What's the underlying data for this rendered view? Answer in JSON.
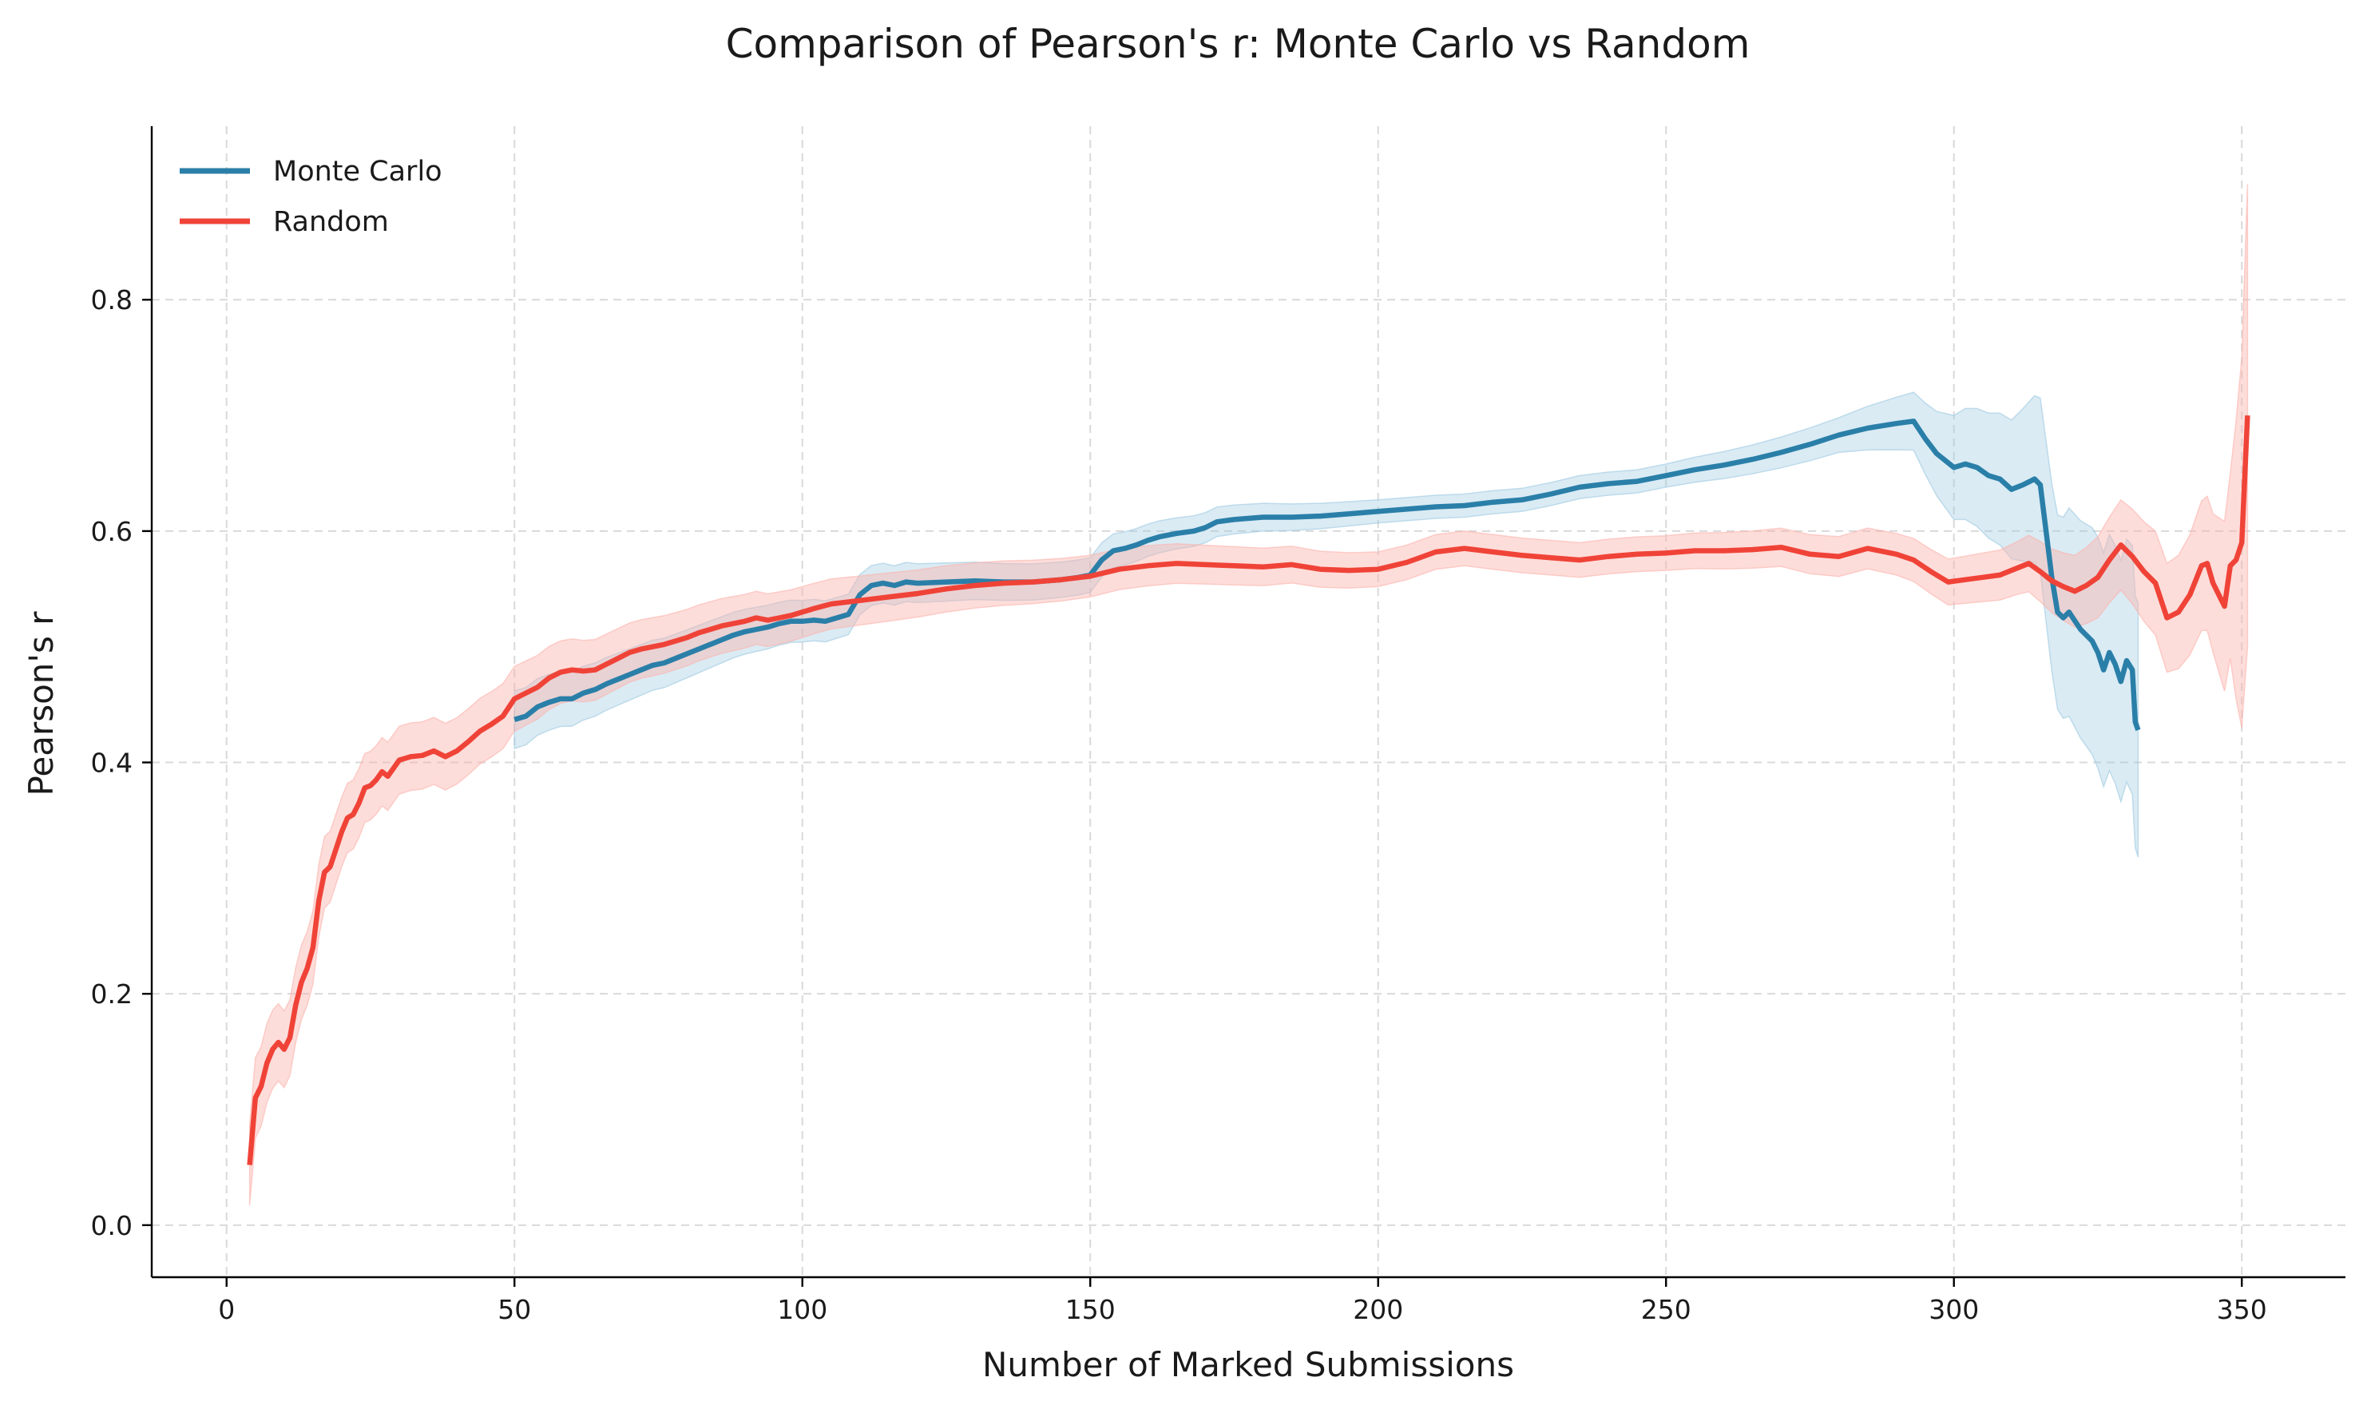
{
  "chart_data": {
    "type": "line",
    "title": "Comparison of Pearson's r: Monte Carlo vs Random",
    "xlabel": "Number of Marked Submissions",
    "ylabel": "Pearson's r",
    "xlim": [
      -13,
      368
    ],
    "ylim": [
      -0.045,
      0.95
    ],
    "xticks": [
      0,
      50,
      100,
      150,
      200,
      250,
      300,
      350
    ],
    "yticks": [
      0.0,
      0.2,
      0.4,
      0.6,
      0.8
    ],
    "ytick_labels": [
      "0.0",
      "0.2",
      "0.4",
      "0.6",
      "0.8"
    ],
    "grid": true,
    "legend_position": "top-left",
    "series": [
      {
        "name": "Monte Carlo",
        "color": "#2a7fa8",
        "band_color": "#9ecae1",
        "points": [
          [
            50,
            0.437
          ],
          [
            52,
            0.44
          ],
          [
            54,
            0.448
          ],
          [
            56,
            0.452
          ],
          [
            58,
            0.455
          ],
          [
            60,
            0.455
          ],
          [
            62,
            0.46
          ],
          [
            64,
            0.463
          ],
          [
            66,
            0.468
          ],
          [
            68,
            0.472
          ],
          [
            70,
            0.476
          ],
          [
            72,
            0.48
          ],
          [
            74,
            0.484
          ],
          [
            76,
            0.486
          ],
          [
            78,
            0.49
          ],
          [
            80,
            0.494
          ],
          [
            82,
            0.498
          ],
          [
            84,
            0.502
          ],
          [
            86,
            0.506
          ],
          [
            88,
            0.51
          ],
          [
            90,
            0.513
          ],
          [
            92,
            0.515
          ],
          [
            94,
            0.517
          ],
          [
            96,
            0.52
          ],
          [
            98,
            0.522
          ],
          [
            100,
            0.522
          ],
          [
            102,
            0.523
          ],
          [
            104,
            0.522
          ],
          [
            106,
            0.525
          ],
          [
            108,
            0.528
          ],
          [
            110,
            0.545
          ],
          [
            112,
            0.553
          ],
          [
            114,
            0.555
          ],
          [
            116,
            0.553
          ],
          [
            118,
            0.556
          ],
          [
            120,
            0.555
          ],
          [
            125,
            0.556
          ],
          [
            130,
            0.557
          ],
          [
            135,
            0.556
          ],
          [
            140,
            0.556
          ],
          [
            145,
            0.558
          ],
          [
            148,
            0.56
          ],
          [
            150,
            0.562
          ],
          [
            152,
            0.575
          ],
          [
            154,
            0.583
          ],
          [
            156,
            0.585
          ],
          [
            158,
            0.588
          ],
          [
            160,
            0.592
          ],
          [
            162,
            0.595
          ],
          [
            165,
            0.598
          ],
          [
            168,
            0.6
          ],
          [
            170,
            0.603
          ],
          [
            172,
            0.608
          ],
          [
            175,
            0.61
          ],
          [
            180,
            0.612
          ],
          [
            185,
            0.612
          ],
          [
            190,
            0.613
          ],
          [
            195,
            0.615
          ],
          [
            200,
            0.617
          ],
          [
            205,
            0.619
          ],
          [
            210,
            0.621
          ],
          [
            215,
            0.622
          ],
          [
            220,
            0.625
          ],
          [
            225,
            0.627
          ],
          [
            230,
            0.632
          ],
          [
            235,
            0.638
          ],
          [
            240,
            0.641
          ],
          [
            245,
            0.643
          ],
          [
            250,
            0.648
          ],
          [
            255,
            0.653
          ],
          [
            260,
            0.657
          ],
          [
            265,
            0.662
          ],
          [
            270,
            0.668
          ],
          [
            275,
            0.675
          ],
          [
            280,
            0.683
          ],
          [
            285,
            0.689
          ],
          [
            290,
            0.693
          ],
          [
            293,
            0.695
          ],
          [
            295,
            0.68
          ],
          [
            297,
            0.667
          ],
          [
            300,
            0.655
          ],
          [
            302,
            0.658
          ],
          [
            304,
            0.655
          ],
          [
            306,
            0.648
          ],
          [
            308,
            0.645
          ],
          [
            310,
            0.636
          ],
          [
            312,
            0.64
          ],
          [
            314,
            0.645
          ],
          [
            315,
            0.64
          ],
          [
            316,
            0.6
          ],
          [
            317,
            0.56
          ],
          [
            318,
            0.53
          ],
          [
            319,
            0.525
          ],
          [
            320,
            0.53
          ],
          [
            322,
            0.515
          ],
          [
            324,
            0.505
          ],
          [
            325,
            0.495
          ],
          [
            326,
            0.48
          ],
          [
            327,
            0.495
          ],
          [
            328,
            0.485
          ],
          [
            329,
            0.47
          ],
          [
            330,
            0.488
          ],
          [
            331,
            0.48
          ],
          [
            331.5,
            0.435
          ],
          [
            332,
            0.428
          ]
        ],
        "band_halfwidth": [
          [
            50,
            0.025
          ],
          [
            100,
            0.018
          ],
          [
            150,
            0.015
          ],
          [
            200,
            0.01
          ],
          [
            250,
            0.01
          ],
          [
            280,
            0.015
          ],
          [
            293,
            0.025
          ],
          [
            300,
            0.045
          ],
          [
            310,
            0.06
          ],
          [
            315,
            0.075
          ],
          [
            320,
            0.09
          ],
          [
            325,
            0.1
          ],
          [
            330,
            0.105
          ],
          [
            332,
            0.11
          ]
        ]
      },
      {
        "name": "Random",
        "color": "#f04338",
        "band_color": "#fbb4ae",
        "points": [
          [
            4,
            0.052
          ],
          [
            5,
            0.11
          ],
          [
            6,
            0.12
          ],
          [
            7,
            0.14
          ],
          [
            8,
            0.152
          ],
          [
            9,
            0.158
          ],
          [
            10,
            0.152
          ],
          [
            11,
            0.162
          ],
          [
            12,
            0.19
          ],
          [
            13,
            0.21
          ],
          [
            14,
            0.222
          ],
          [
            15,
            0.24
          ],
          [
            16,
            0.28
          ],
          [
            17,
            0.305
          ],
          [
            18,
            0.31
          ],
          [
            19,
            0.325
          ],
          [
            20,
            0.34
          ],
          [
            21,
            0.352
          ],
          [
            22,
            0.355
          ],
          [
            23,
            0.365
          ],
          [
            24,
            0.378
          ],
          [
            25,
            0.38
          ],
          [
            26,
            0.385
          ],
          [
            27,
            0.392
          ],
          [
            28,
            0.388
          ],
          [
            29,
            0.395
          ],
          [
            30,
            0.402
          ],
          [
            32,
            0.405
          ],
          [
            34,
            0.406
          ],
          [
            36,
            0.41
          ],
          [
            38,
            0.405
          ],
          [
            40,
            0.41
          ],
          [
            42,
            0.418
          ],
          [
            44,
            0.427
          ],
          [
            46,
            0.433
          ],
          [
            48,
            0.44
          ],
          [
            50,
            0.455
          ],
          [
            52,
            0.46
          ],
          [
            54,
            0.465
          ],
          [
            56,
            0.473
          ],
          [
            58,
            0.478
          ],
          [
            60,
            0.48
          ],
          [
            62,
            0.479
          ],
          [
            64,
            0.48
          ],
          [
            66,
            0.485
          ],
          [
            68,
            0.49
          ],
          [
            70,
            0.495
          ],
          [
            72,
            0.498
          ],
          [
            74,
            0.5
          ],
          [
            76,
            0.502
          ],
          [
            78,
            0.505
          ],
          [
            80,
            0.508
          ],
          [
            82,
            0.512
          ],
          [
            84,
            0.515
          ],
          [
            86,
            0.518
          ],
          [
            88,
            0.52
          ],
          [
            90,
            0.522
          ],
          [
            92,
            0.525
          ],
          [
            94,
            0.523
          ],
          [
            96,
            0.525
          ],
          [
            98,
            0.527
          ],
          [
            100,
            0.53
          ],
          [
            102,
            0.533
          ],
          [
            105,
            0.537
          ],
          [
            110,
            0.54
          ],
          [
            115,
            0.543
          ],
          [
            120,
            0.546
          ],
          [
            125,
            0.55
          ],
          [
            130,
            0.553
          ],
          [
            135,
            0.555
          ],
          [
            140,
            0.556
          ],
          [
            145,
            0.558
          ],
          [
            150,
            0.561
          ],
          [
            155,
            0.567
          ],
          [
            160,
            0.57
          ],
          [
            165,
            0.572
          ],
          [
            170,
            0.571
          ],
          [
            175,
            0.57
          ],
          [
            180,
            0.569
          ],
          [
            185,
            0.571
          ],
          [
            190,
            0.567
          ],
          [
            195,
            0.566
          ],
          [
            200,
            0.567
          ],
          [
            205,
            0.573
          ],
          [
            210,
            0.582
          ],
          [
            215,
            0.585
          ],
          [
            220,
            0.582
          ],
          [
            225,
            0.579
          ],
          [
            230,
            0.577
          ],
          [
            235,
            0.575
          ],
          [
            240,
            0.578
          ],
          [
            245,
            0.58
          ],
          [
            250,
            0.581
          ],
          [
            255,
            0.583
          ],
          [
            260,
            0.583
          ],
          [
            265,
            0.584
          ],
          [
            270,
            0.586
          ],
          [
            275,
            0.58
          ],
          [
            280,
            0.578
          ],
          [
            285,
            0.585
          ],
          [
            290,
            0.58
          ],
          [
            293,
            0.575
          ],
          [
            296,
            0.565
          ],
          [
            299,
            0.556
          ],
          [
            302,
            0.558
          ],
          [
            305,
            0.56
          ],
          [
            308,
            0.562
          ],
          [
            311,
            0.568
          ],
          [
            313,
            0.572
          ],
          [
            315,
            0.565
          ],
          [
            317,
            0.557
          ],
          [
            319,
            0.552
          ],
          [
            321,
            0.548
          ],
          [
            323,
            0.553
          ],
          [
            325,
            0.56
          ],
          [
            327,
            0.575
          ],
          [
            329,
            0.588
          ],
          [
            331,
            0.578
          ],
          [
            333,
            0.565
          ],
          [
            335,
            0.555
          ],
          [
            337,
            0.525
          ],
          [
            339,
            0.53
          ],
          [
            341,
            0.545
          ],
          [
            343,
            0.57
          ],
          [
            344,
            0.572
          ],
          [
            345,
            0.555
          ],
          [
            347,
            0.535
          ],
          [
            348,
            0.57
          ],
          [
            349,
            0.575
          ],
          [
            350,
            0.59
          ],
          [
            351,
            0.7
          ]
        ],
        "band_halfwidth": [
          [
            4,
            0.035
          ],
          [
            20,
            0.03
          ],
          [
            50,
            0.028
          ],
          [
            100,
            0.022
          ],
          [
            150,
            0.018
          ],
          [
            200,
            0.015
          ],
          [
            250,
            0.015
          ],
          [
            290,
            0.018
          ],
          [
            310,
            0.022
          ],
          [
            320,
            0.03
          ],
          [
            330,
            0.04
          ],
          [
            340,
            0.05
          ],
          [
            345,
            0.06
          ],
          [
            348,
            0.08
          ],
          [
            351,
            0.2
          ]
        ]
      }
    ]
  }
}
